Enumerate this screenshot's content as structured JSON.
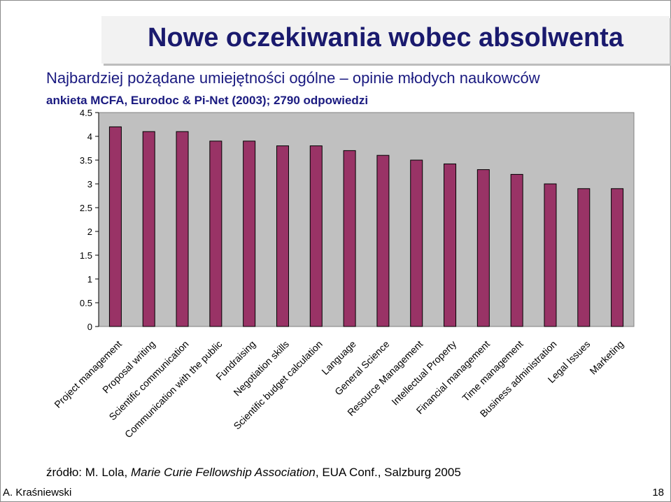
{
  "slide": {
    "title": "Nowe oczekiwania wobec absolwenta",
    "subtitle": "Najbardziej pożądane umiejętności ogólne – opinie młodych naukowców",
    "survey_note": "ankieta MCFA, Eurodoc & Pi-Net (2003); 2790 odpowiedzi",
    "citation": {
      "prefix": "źródło: M. Lola, ",
      "org": "Marie Curie Fellowship Association",
      "suffix": ", EUA Conf., Salzburg 2005"
    },
    "footer_author": "A. Kraśniewski",
    "page_number": "18"
  },
  "colors": {
    "bar_fill": "#993366",
    "plot_background": "#c0c0c0",
    "title_text": "#1a1a6e"
  },
  "chart_data": {
    "type": "bar",
    "categories": [
      "Project management",
      "Proposal writing",
      "Scientific communication",
      "Communication with the public",
      "Fundraising",
      "Negotiation skills",
      "Scientific budget calculation",
      "Language",
      "General Science",
      "Resource Management",
      "Intellectual Property",
      "Financial management",
      "Time management",
      "Business administration",
      "Legal Issues",
      "Marketing"
    ],
    "values": [
      4.2,
      4.1,
      4.1,
      3.9,
      3.9,
      3.8,
      3.8,
      3.7,
      3.6,
      3.5,
      3.42,
      3.3,
      3.2,
      3.0,
      2.9,
      2.9
    ],
    "ylim": [
      0,
      4.5
    ],
    "yticks": [
      "0",
      "0.5",
      "1",
      "1.5",
      "2",
      "2.5",
      "3",
      "3.5",
      "4",
      "4.5"
    ],
    "grid": false,
    "legend": "none"
  }
}
